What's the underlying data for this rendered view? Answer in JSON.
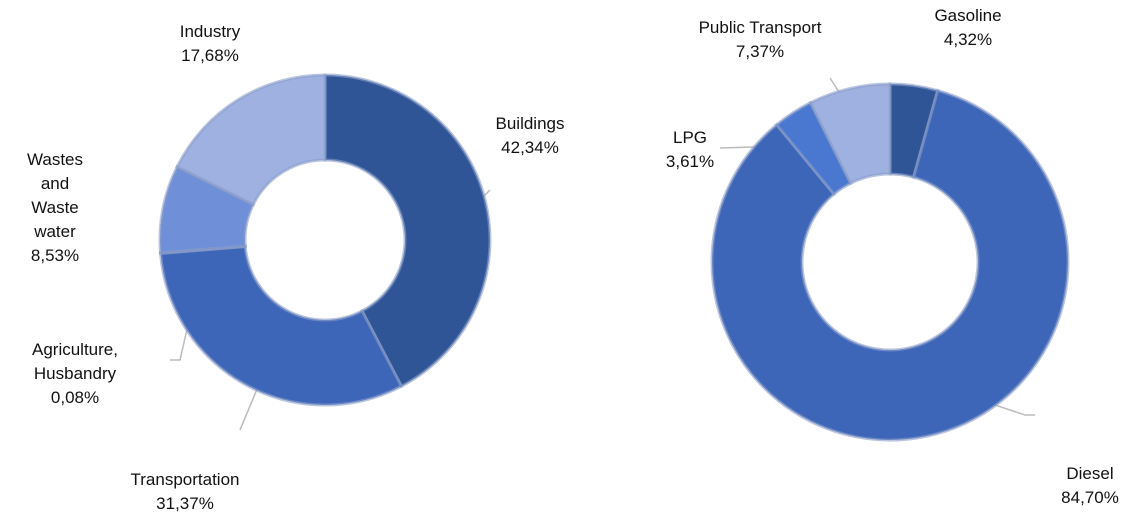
{
  "chart_data": [
    {
      "type": "pie",
      "categories": [
        "Buildings",
        "Transportation",
        "Agriculture, Husbandry",
        "Wastes and Waste water",
        "Industry"
      ],
      "values": [
        42.34,
        31.37,
        0.08,
        8.53,
        17.68
      ],
      "value_labels": [
        "42,34%",
        "31,37%",
        "0,08%",
        "8,53%",
        "17,68%"
      ],
      "colors": [
        "#2f5597",
        "#3d66b8",
        "#4a72c4",
        "#6f8fd8",
        "#9fb1e0"
      ]
    },
    {
      "type": "pie",
      "categories": [
        "Gasoline",
        "Diesel",
        "LPG",
        "Public Transport"
      ],
      "values": [
        4.32,
        84.7,
        3.61,
        7.37
      ],
      "value_labels": [
        "4,32%",
        "84,70%",
        "3,61%",
        "7,37%"
      ],
      "colors": [
        "#2f5597",
        "#3d66b8",
        "#4a78d0",
        "#9fb1e0"
      ]
    }
  ]
}
